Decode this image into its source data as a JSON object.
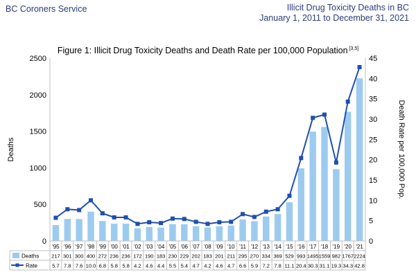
{
  "header": {
    "agency": "BC Coroners Service",
    "report_title": "Illicit Drug Toxicity Deaths in BC",
    "date_range": "January 1, 2011 to December 31, 2021"
  },
  "chart_data": {
    "type": "bar+line",
    "title": "Figure 1: Illicit Drug Toxicity Deaths and Death Rate per 100,000 Population",
    "title_superscript": "[3,5]",
    "ylabel": "Deaths",
    "y2label": "Death Rate per 100,000 Pop.",
    "ylim": [
      0,
      2500
    ],
    "y_ticks": [
      "0",
      "500",
      "1000",
      "1500",
      "2000",
      "2500"
    ],
    "y2lim": [
      0,
      45
    ],
    "y2_ticks": [
      "0",
      "5",
      "10",
      "15",
      "20",
      "25",
      "30",
      "35",
      "40",
      "45"
    ],
    "categories": [
      "'95",
      "'96",
      "'97",
      "'98",
      "'99",
      "'00",
      "'01",
      "'02",
      "'03",
      "'04",
      "'05",
      "'06",
      "'07",
      "'08",
      "'09",
      "'10",
      "'11",
      "'12",
      "'13",
      "'14",
      "'15",
      "'16",
      "'17",
      "'18",
      "'19",
      "'20",
      "'21"
    ],
    "series": [
      {
        "name": "Deaths",
        "kind": "bar",
        "color": "#9dcbef",
        "values": [
          217,
          301,
          300,
          400,
          272,
          236,
          236,
          172,
          190,
          183,
          230,
          229,
          202,
          183,
          201,
          211,
          295,
          270,
          334,
          369,
          529,
          993,
          1495,
          1559,
          982,
          1767,
          2224
        ],
        "labels": [
          "217",
          "301",
          "300",
          "400",
          "272",
          "236",
          "236",
          "172",
          "190",
          "183",
          "230",
          "229",
          "202",
          "183",
          "201",
          "211",
          "295",
          "270",
          "334",
          "369",
          "529",
          "993",
          "1495",
          "1559",
          "982",
          "1767",
          "2224"
        ]
      },
      {
        "name": "Rate",
        "kind": "line",
        "color": "#1f4fb0",
        "values": [
          5.7,
          7.8,
          7.6,
          10.0,
          6.8,
          5.8,
          5.8,
          4.2,
          4.6,
          4.4,
          5.5,
          5.4,
          4.7,
          4.2,
          4.6,
          4.7,
          6.6,
          5.9,
          7.2,
          7.8,
          11.1,
          20.4,
          30.3,
          31.1,
          19.3,
          34.3,
          42.8
        ],
        "labels": [
          "5.7",
          "7.8",
          "7.6",
          "10.0",
          "6.8",
          "5.8",
          "5.8",
          "4.2",
          "4.6",
          "4.4",
          "5.5",
          "5.4",
          "4.7",
          "4.2",
          "4.6",
          "4.7",
          "6.6",
          "5.9",
          "7.2",
          "7.8",
          "11.1",
          "20.4",
          "30.3",
          "31.1",
          "19.3",
          "34.3",
          "42.8"
        ]
      }
    ]
  }
}
